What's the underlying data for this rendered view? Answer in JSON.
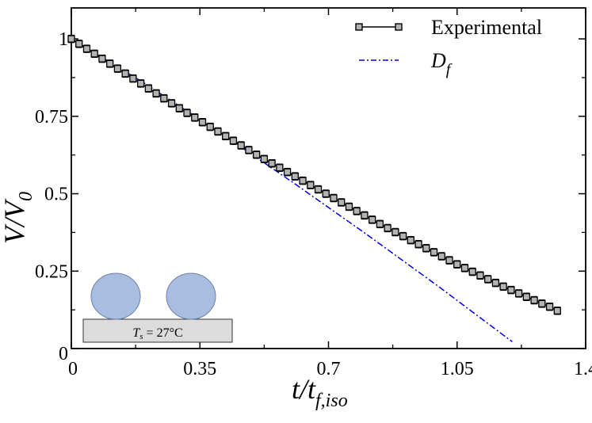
{
  "chart_data": {
    "type": "line",
    "xlabel": "t/t",
    "xlabel_sub": "f,iso",
    "ylabel": "V/V",
    "ylabel_sub": "0",
    "xlim": [
      0,
      1.4
    ],
    "ylim": [
      0,
      1.1
    ],
    "xticks": [
      0,
      0.35,
      0.7,
      1.05,
      1.4
    ],
    "xtick_labels": [
      "0",
      "0.35",
      "0.7",
      "1.05",
      "1.4"
    ],
    "yticks": [
      0,
      0.25,
      0.5,
      0.75,
      1
    ],
    "ytick_labels": [
      "0",
      "0.25",
      "0.5",
      "0.75",
      "1"
    ],
    "legend_position": "top-right",
    "series": [
      {
        "name": "Experimental",
        "style": "line-with-square-markers-and-error-bars",
        "color": "#000000",
        "marker_fill": "#b3b3b3",
        "x": [
          0.0,
          0.021,
          0.042,
          0.063,
          0.084,
          0.105,
          0.126,
          0.147,
          0.168,
          0.189,
          0.21,
          0.231,
          0.252,
          0.273,
          0.294,
          0.315,
          0.336,
          0.357,
          0.378,
          0.399,
          0.42,
          0.441,
          0.462,
          0.483,
          0.504,
          0.525,
          0.546,
          0.567,
          0.588,
          0.609,
          0.63,
          0.651,
          0.672,
          0.693,
          0.714,
          0.735,
          0.756,
          0.777,
          0.798,
          0.819,
          0.84,
          0.861,
          0.882,
          0.903,
          0.924,
          0.945,
          0.966,
          0.987,
          1.008,
          1.029,
          1.05,
          1.071,
          1.092,
          1.113,
          1.134,
          1.155,
          1.176,
          1.197,
          1.218,
          1.239,
          1.26,
          1.281,
          1.302,
          1.323
        ],
        "y": [
          1.0,
          0.984,
          0.968,
          0.952,
          0.936,
          0.92,
          0.904,
          0.888,
          0.872,
          0.856,
          0.84,
          0.824,
          0.808,
          0.792,
          0.776,
          0.761,
          0.746,
          0.731,
          0.716,
          0.701,
          0.686,
          0.671,
          0.656,
          0.641,
          0.626,
          0.612,
          0.598,
          0.584,
          0.57,
          0.556,
          0.542,
          0.528,
          0.514,
          0.5,
          0.486,
          0.472,
          0.458,
          0.444,
          0.43,
          0.416,
          0.402,
          0.389,
          0.376,
          0.363,
          0.35,
          0.337,
          0.324,
          0.311,
          0.298,
          0.285,
          0.272,
          0.26,
          0.248,
          0.236,
          0.224,
          0.212,
          0.2,
          0.189,
          0.178,
          0.167,
          0.156,
          0.145,
          0.135,
          0.122
        ],
        "error": 0.012
      },
      {
        "name": "D_f",
        "legend_main": "D",
        "legend_sub": "f",
        "style": "dash-dot",
        "color": "#0000dd",
        "x": [
          0.0,
          0.2,
          0.4,
          0.6,
          0.8,
          1.0,
          1.2
        ],
        "y": [
          1.0,
          0.856,
          0.701,
          0.539,
          0.372,
          0.2,
          0.022
        ]
      }
    ],
    "inset": {
      "label": "T",
      "label_sub": "s",
      "label_rest": " = 27°C",
      "drop_color": "#a8bde0",
      "substrate_color": "#dcdcdc"
    }
  }
}
